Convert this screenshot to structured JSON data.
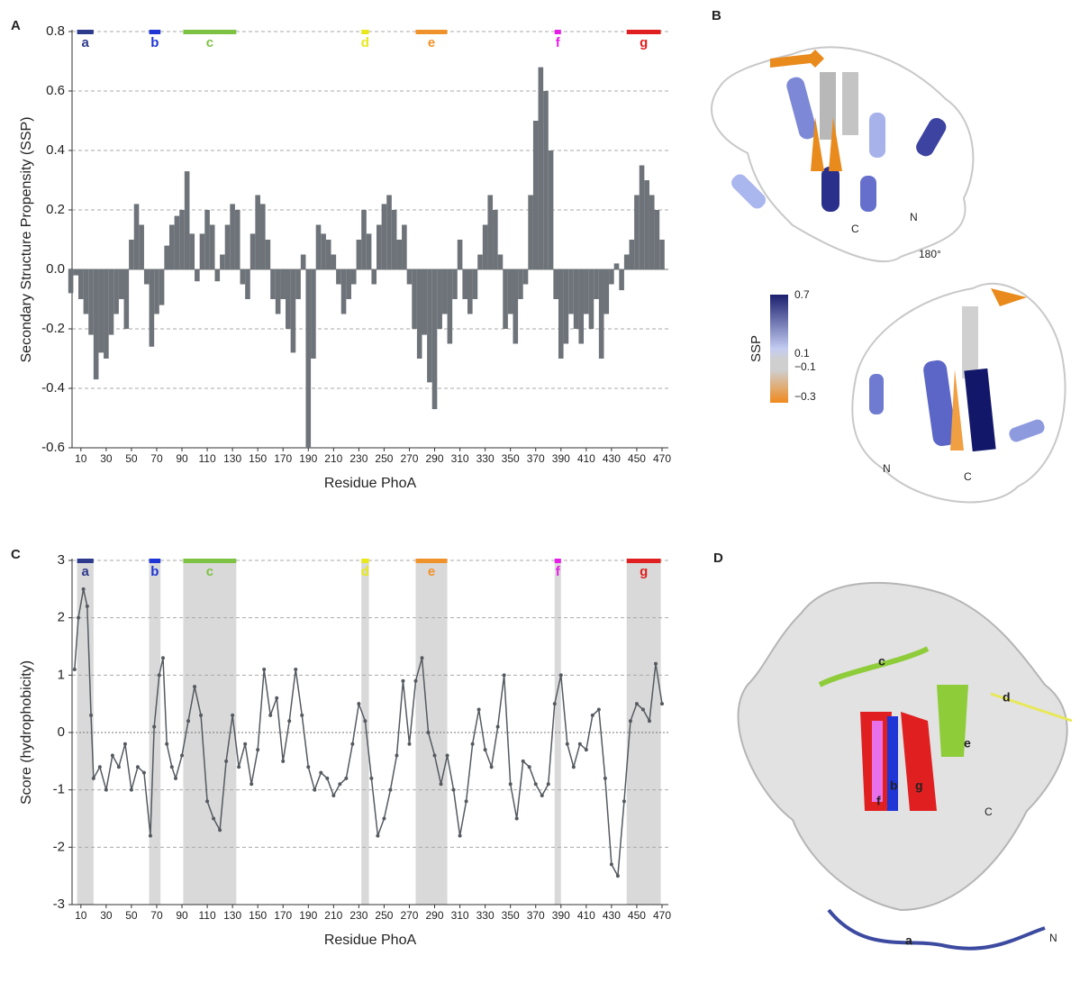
{
  "chart_data": [
    {
      "type": "bar",
      "panel": "A",
      "xlabel": "Residue PhoA",
      "ylabel": "Secondary Structure Propensity (SSP)",
      "color": "#6d7379",
      "x": [
        2,
        6,
        10,
        14,
        18,
        22,
        26,
        30,
        34,
        38,
        42,
        46,
        50,
        54,
        58,
        62,
        66,
        70,
        74,
        78,
        82,
        86,
        90,
        94,
        98,
        102,
        106,
        110,
        114,
        118,
        122,
        126,
        130,
        134,
        138,
        142,
        146,
        150,
        154,
        158,
        162,
        166,
        170,
        174,
        178,
        182,
        186,
        190,
        194,
        198,
        202,
        206,
        210,
        214,
        218,
        222,
        226,
        230,
        234,
        238,
        242,
        246,
        250,
        254,
        258,
        262,
        266,
        270,
        274,
        278,
        282,
        286,
        290,
        294,
        298,
        302,
        306,
        310,
        314,
        318,
        322,
        326,
        330,
        334,
        338,
        342,
        346,
        350,
        354,
        358,
        362,
        366,
        370,
        374,
        378,
        382,
        386,
        390,
        394,
        398,
        402,
        406,
        410,
        414,
        418,
        422,
        426,
        430,
        434,
        438,
        442,
        446,
        450,
        454,
        458,
        462,
        466,
        470
      ],
      "values": [
        -0.08,
        -0.02,
        -0.1,
        -0.15,
        -0.22,
        -0.37,
        -0.28,
        -0.3,
        -0.22,
        -0.15,
        -0.1,
        -0.2,
        0.1,
        0.22,
        0.15,
        -0.05,
        -0.26,
        -0.15,
        -0.12,
        0.08,
        0.15,
        0.18,
        0.2,
        0.33,
        0.12,
        -0.04,
        0.12,
        0.2,
        0.15,
        -0.04,
        0.05,
        0.15,
        0.22,
        0.2,
        -0.05,
        -0.1,
        0.12,
        0.25,
        0.22,
        0.1,
        -0.1,
        -0.15,
        -0.1,
        -0.2,
        -0.28,
        -0.1,
        0.05,
        -0.6,
        -0.3,
        0.15,
        0.12,
        0.1,
        0.05,
        -0.05,
        -0.15,
        -0.1,
        -0.05,
        0.1,
        0.2,
        0.12,
        -0.05,
        0.15,
        0.22,
        0.25,
        0.2,
        0.1,
        0.15,
        -0.05,
        -0.2,
        -0.3,
        -0.22,
        -0.38,
        -0.47,
        -0.2,
        -0.15,
        -0.25,
        -0.1,
        0.1,
        -0.1,
        -0.15,
        -0.1,
        0.05,
        0.15,
        0.25,
        0.2,
        0.05,
        -0.2,
        -0.15,
        -0.25,
        -0.1,
        -0.05,
        0.25,
        0.5,
        0.68,
        0.6,
        0.4,
        -0.1,
        -0.3,
        -0.25,
        -0.15,
        -0.2,
        -0.25,
        -0.15,
        -0.2,
        -0.1,
        -0.3,
        -0.15,
        -0.05,
        0.02,
        -0.07,
        0.05,
        0.1,
        0.25,
        0.35,
        0.3,
        0.25,
        0.2,
        0.1
      ],
      "xlim": [
        3,
        475
      ],
      "xticks": [
        10,
        30,
        50,
        70,
        90,
        110,
        130,
        150,
        170,
        190,
        210,
        230,
        250,
        270,
        290,
        310,
        330,
        350,
        370,
        390,
        410,
        430,
        450,
        470
      ],
      "ylim": [
        -0.6,
        0.8
      ],
      "yticks": [
        -0.6,
        -0.4,
        -0.2,
        {
          "value": 0,
          "label": "0.0"
        },
        0.2,
        0.4,
        0.6,
        0.8
      ],
      "grid": true,
      "shade_regions": false,
      "regions": [
        {
          "label": "a",
          "start": 7,
          "end": 20,
          "color": "#2e3a8c"
        },
        {
          "label": "b",
          "start": 64,
          "end": 73,
          "color": "#1f35d6"
        },
        {
          "label": "c",
          "start": 91,
          "end": 133,
          "color": "#7dc243"
        },
        {
          "label": "d",
          "start": 232,
          "end": 238,
          "color": "#e8e81a"
        },
        {
          "label": "e",
          "start": 275,
          "end": 300,
          "color": "#f0922b"
        },
        {
          "label": "f",
          "start": 385,
          "end": 390,
          "color": "#e81ee8"
        },
        {
          "label": "g",
          "start": 442,
          "end": 469,
          "color": "#e02020"
        }
      ]
    },
    {
      "type": "line",
      "panel": "C",
      "xlabel": "Residue PhoA",
      "ylabel": "Score (hydrophobicity)",
      "color": "#555a60",
      "x": [
        5,
        8,
        12,
        15,
        18,
        20,
        25,
        30,
        35,
        40,
        45,
        50,
        55,
        60,
        65,
        68,
        72,
        75,
        78,
        82,
        85,
        90,
        95,
        100,
        105,
        110,
        115,
        120,
        125,
        130,
        135,
        140,
        145,
        150,
        155,
        160,
        165,
        170,
        175,
        180,
        185,
        190,
        195,
        200,
        205,
        210,
        215,
        220,
        225,
        230,
        235,
        240,
        245,
        250,
        255,
        260,
        265,
        270,
        275,
        280,
        285,
        290,
        295,
        300,
        305,
        310,
        315,
        320,
        325,
        330,
        335,
        340,
        345,
        350,
        355,
        360,
        365,
        370,
        375,
        380,
        385,
        390,
        395,
        400,
        405,
        410,
        415,
        420,
        425,
        430,
        435,
        440,
        445,
        450,
        455,
        460,
        465,
        470
      ],
      "values": [
        1.1,
        2.0,
        2.5,
        2.2,
        0.3,
        -0.8,
        -0.6,
        -1.0,
        -0.4,
        -0.6,
        -0.2,
        -1.0,
        -0.6,
        -0.7,
        -1.8,
        0.1,
        1.0,
        1.3,
        -0.2,
        -0.6,
        -0.8,
        -0.4,
        0.2,
        0.8,
        0.3,
        -1.2,
        -1.5,
        -1.7,
        -0.5,
        0.3,
        -0.6,
        -0.2,
        -0.9,
        -0.3,
        1.1,
        0.3,
        0.6,
        -0.5,
        0.2,
        1.1,
        0.3,
        -0.6,
        -1.0,
        -0.7,
        -0.8,
        -1.1,
        -0.9,
        -0.8,
        -0.2,
        0.5,
        0.2,
        -0.8,
        -1.8,
        -1.5,
        -1.0,
        -0.4,
        0.9,
        -0.2,
        0.9,
        1.3,
        0,
        -0.4,
        -0.9,
        -0.4,
        -1.0,
        -1.8,
        -1.2,
        -0.2,
        0.4,
        -0.3,
        -0.6,
        0.1,
        1.0,
        -0.9,
        -1.5,
        -0.5,
        -0.6,
        -0.9,
        -1.1,
        -0.9,
        0.5,
        1.0,
        -0.2,
        -0.6,
        -0.2,
        -0.3,
        0.3,
        0.4,
        -0.8,
        -2.3,
        -2.5,
        -1.2,
        0.2,
        0.5,
        0.4,
        0.2,
        1.2,
        0.5
      ],
      "xlim": [
        3,
        475
      ],
      "xticks": [
        10,
        30,
        50,
        70,
        90,
        110,
        130,
        150,
        170,
        190,
        210,
        230,
        250,
        270,
        290,
        310,
        330,
        350,
        370,
        390,
        410,
        430,
        450,
        470
      ],
      "ylim": [
        -3,
        3
      ],
      "yticks": [
        -3,
        -2,
        -1,
        0,
        1,
        2,
        3
      ],
      "grid": true,
      "shade_regions": true,
      "regions": [
        {
          "label": "a",
          "start": 7,
          "end": 20,
          "color": "#2e3a8c"
        },
        {
          "label": "b",
          "start": 64,
          "end": 73,
          "color": "#1f35d6"
        },
        {
          "label": "c",
          "start": 91,
          "end": 133,
          "color": "#7dc243"
        },
        {
          "label": "d",
          "start": 232,
          "end": 238,
          "color": "#e8e81a"
        },
        {
          "label": "e",
          "start": 275,
          "end": 300,
          "color": "#f0922b"
        },
        {
          "label": "f",
          "start": 385,
          "end": 390,
          "color": "#e81ee8"
        },
        {
          "label": "g",
          "start": 442,
          "end": 469,
          "color": "#e02020"
        }
      ]
    }
  ],
  "figures": [
    {
      "panel": "B",
      "top_labels": [
        "N",
        "C"
      ],
      "rotation": "180°",
      "colorbar": {
        "title": "SSP",
        "ticks": [
          "0.7",
          "0.1",
          "−0.1",
          "−0.3"
        ]
      },
      "bottom_labels": [
        "N",
        "C"
      ]
    },
    {
      "panel": "D",
      "labels": [
        "c",
        "d",
        "b",
        "f",
        "g",
        "e",
        "C",
        "N",
        "a"
      ]
    }
  ]
}
